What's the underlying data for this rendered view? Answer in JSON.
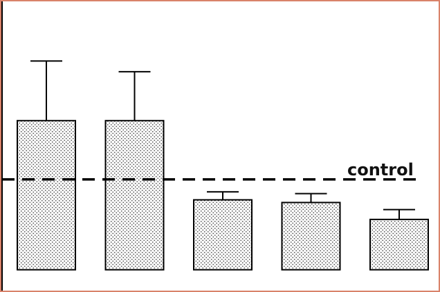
{
  "chart_data": {
    "type": "bar",
    "categories": [
      "",
      "",
      "",
      "",
      ""
    ],
    "values": [
      1.66,
      1.66,
      0.77,
      0.74,
      0.55
    ],
    "errors": [
      0.67,
      0.55,
      0.09,
      0.1,
      0.11
    ],
    "reference_line": {
      "label": "control",
      "value": 1.0,
      "style": "dashed"
    },
    "title": "",
    "xlabel": "",
    "ylabel": "",
    "ylim": [
      -0.25,
      3.0
    ],
    "grid": false,
    "bar_fill": "dotted",
    "colors": {
      "frame": "#d9826a",
      "bar_outline": "#000000",
      "dot": "#555555"
    }
  }
}
